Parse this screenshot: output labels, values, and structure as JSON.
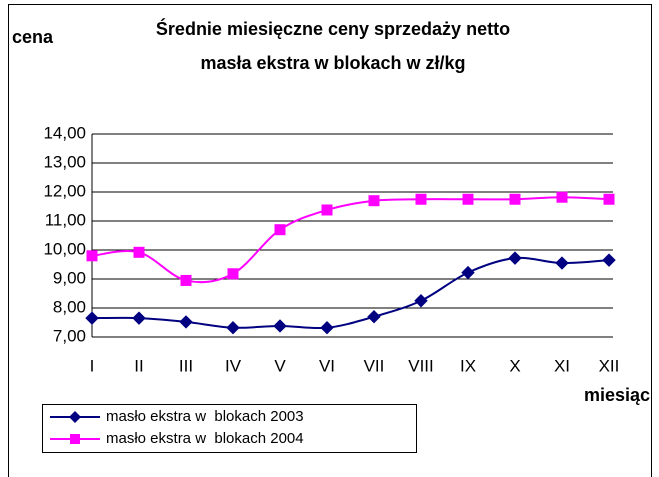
{
  "chart_data": {
    "type": "line",
    "title": [
      "Średnie miesięczne ceny sprzedaży netto",
      "masła ekstra w blokach w zł/kg"
    ],
    "y_label": "cena",
    "x_label": "miesiąc",
    "categories": [
      "I",
      "II",
      "III",
      "IV",
      "V",
      "VI",
      "VII",
      "VIII",
      "IX",
      "X",
      "XI",
      "XII"
    ],
    "series": [
      {
        "name": "masło ekstra w  blokach 2003",
        "color": "#000080",
        "marker": "diamond",
        "values": [
          7.65,
          7.65,
          7.52,
          7.32,
          7.38,
          7.32,
          7.7,
          8.25,
          9.22,
          9.72,
          9.55,
          9.65
        ]
      },
      {
        "name": "masło ekstra w  blokach 2004",
        "color": "#ff00ff",
        "marker": "square",
        "values": [
          9.8,
          9.92,
          8.95,
          9.18,
          10.7,
          11.38,
          11.7,
          11.75,
          11.75,
          11.75,
          11.82,
          11.75
        ]
      }
    ],
    "ylim": [
      7,
      14
    ],
    "yticks": [
      {
        "value": 7,
        "label": "7,00"
      },
      {
        "value": 8,
        "label": "8,00"
      },
      {
        "value": 9,
        "label": "9,00"
      },
      {
        "value": 10,
        "label": "10,00"
      },
      {
        "value": 11,
        "label": "11,00"
      },
      {
        "value": 12,
        "label": "12,00"
      },
      {
        "value": 13,
        "label": "13,00"
      },
      {
        "value": 14,
        "label": "14,00"
      }
    ],
    "grid": true,
    "legend": "bottom-left"
  }
}
